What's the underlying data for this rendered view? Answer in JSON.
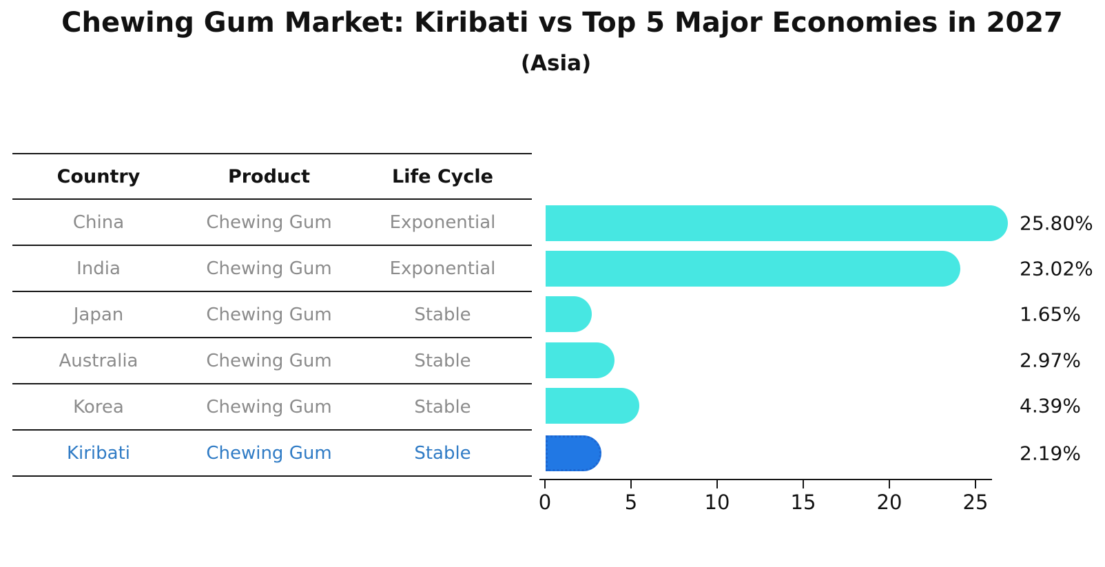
{
  "title": "Chewing Gum Market: Kiribati vs Top 5 Major Economies in 2027",
  "subtitle": "(Asia)",
  "colors": {
    "bar_cyan": "#47e7e2",
    "bar_highlight_blue": "#2178e4",
    "bar_highlight_edge": "#1d66d0",
    "table_text_gray": "#8b8b8b",
    "highlight_text_blue": "#2f7bc5",
    "axis_black": "#151515"
  },
  "table": {
    "headers": [
      "Country",
      "Product",
      "Life Cycle"
    ],
    "rows": [
      {
        "country": "China",
        "product": "Chewing Gum",
        "life_cycle": "Exponential",
        "highlight": false
      },
      {
        "country": "India",
        "product": "Chewing Gum",
        "life_cycle": "Exponential",
        "highlight": false
      },
      {
        "country": "Japan",
        "product": "Chewing Gum",
        "life_cycle": "Stable",
        "highlight": false
      },
      {
        "country": "Australia",
        "product": "Chewing Gum",
        "life_cycle": "Stable",
        "highlight": false
      },
      {
        "country": "Korea",
        "product": "Chewing Gum",
        "life_cycle": "Stable",
        "highlight": false
      },
      {
        "country": "Kiribati",
        "product": "Chewing Gum",
        "life_cycle": "Stable",
        "highlight": true
      }
    ]
  },
  "chart_data": {
    "type": "bar",
    "orientation": "horizontal",
    "title": "Chewing Gum Market: Kiribati vs Top 5 Major Economies in 2027",
    "subtitle": "(Asia)",
    "categories": [
      "China",
      "India",
      "Japan",
      "Australia",
      "Korea",
      "Kiribati"
    ],
    "values": [
      25.8,
      23.02,
      1.65,
      2.97,
      4.39,
      2.19
    ],
    "value_labels": [
      "25.80%",
      "23.02%",
      "1.65%",
      "2.97%",
      "4.39%",
      "2.19%"
    ],
    "unit": "%",
    "x_ticks": [
      "0",
      "5",
      "10",
      "15",
      "20",
      "25"
    ],
    "x_tick_values": [
      0,
      5,
      10,
      15,
      20,
      25
    ],
    "xlim": [
      0,
      26.3
    ],
    "grid": false,
    "legend": "none",
    "bar_color": "#47e7e2",
    "highlight_index": 5,
    "highlight_color": "#2178e4",
    "highlight_edge_color": "#1d66d0",
    "highlight_edge_style": "dotted"
  }
}
